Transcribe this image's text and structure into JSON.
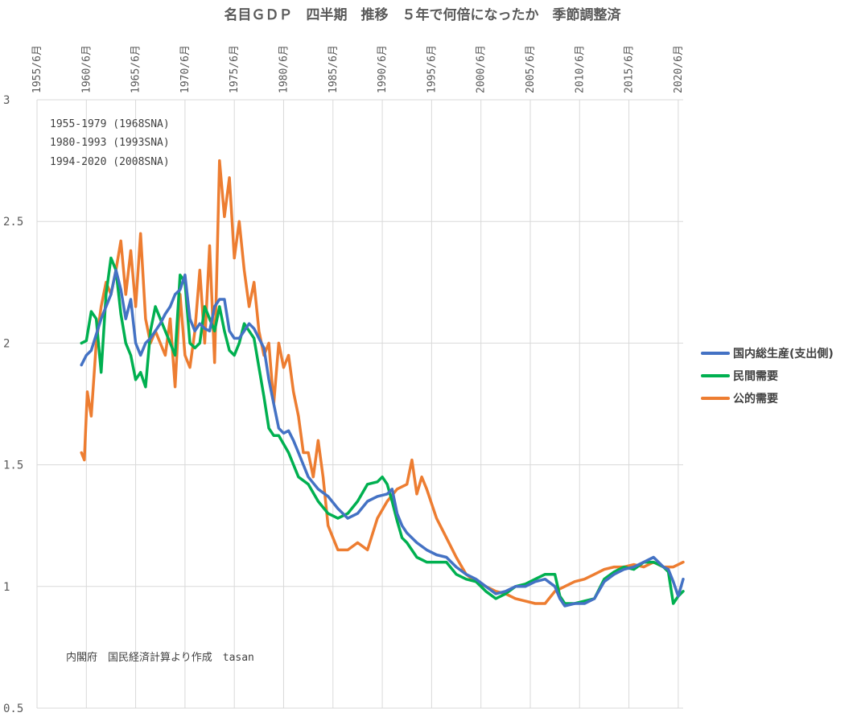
{
  "chart_data": {
    "type": "line",
    "title": "名目ＧＤＰ　四半期　推移　５年で何倍になったか　季節調整済",
    "x_ticks": [
      "1955/6月",
      "1960/6月",
      "1965/6月",
      "1970/6月",
      "1975/6月",
      "1980/6月",
      "1985/6月",
      "1990/6月",
      "1995/6月",
      "2000/6月",
      "2005/6月",
      "2010/6月",
      "2015/6月",
      "2020/6月"
    ],
    "y_ticks": [
      "0.5",
      "1",
      "1.5",
      "2",
      "2.5",
      "3"
    ],
    "ylim": [
      0.5,
      3
    ],
    "xlim": [
      1955.5,
      2021.0
    ],
    "grid": true,
    "legend_position": "right",
    "annotations": [
      "1955-1979 (1968SNA)",
      "1980-1993 (1993SNA)",
      "1994-2020 (2008SNA)"
    ],
    "source_note": "内閣府　国民経済計算より作成　tasan",
    "series": [
      {
        "name": "国内総生産(支出側)",
        "color": "#4472c4",
        "x": [
          1960.0,
          1960.5,
          1961.0,
          1962.0,
          1963.0,
          1963.5,
          1964.0,
          1964.5,
          1965.0,
          1965.5,
          1966.0,
          1966.5,
          1967.0,
          1968.0,
          1968.5,
          1969.0,
          1969.5,
          1970.0,
          1970.5,
          1971.0,
          1971.5,
          1972.0,
          1972.5,
          1973.0,
          1973.5,
          1974.0,
          1974.5,
          1975.0,
          1975.5,
          1976.0,
          1976.5,
          1977.0,
          1977.5,
          1978.0,
          1978.5,
          1979.0,
          1979.5,
          1980.0,
          1980.5,
          1981.0,
          1981.5,
          1982.0,
          1982.5,
          1983.0,
          1984.0,
          1985.0,
          1986.0,
          1987.0,
          1988.0,
          1989.0,
          1990.0,
          1991.0,
          1991.5,
          1992.0,
          1992.5,
          1993.0,
          1994.0,
          1995.0,
          1996.0,
          1997.0,
          1998.0,
          1999.0,
          2000.0,
          2001.0,
          2002.0,
          2003.0,
          2004.0,
          2005.0,
          2006.0,
          2007.0,
          2008.0,
          2008.5,
          2009.0,
          2010.0,
          2011.0,
          2012.0,
          2013.0,
          2014.0,
          2015.0,
          2016.0,
          2017.0,
          2018.0,
          2019.0,
          2019.5,
          2020.0,
          2020.5,
          2021.0
        ],
        "values": [
          1.91,
          1.95,
          1.97,
          2.1,
          2.2,
          2.3,
          2.22,
          2.1,
          2.18,
          2.0,
          1.95,
          2.0,
          2.02,
          2.08,
          2.12,
          2.15,
          2.2,
          2.22,
          2.28,
          2.1,
          2.05,
          2.08,
          2.06,
          2.05,
          2.15,
          2.18,
          2.18,
          2.05,
          2.02,
          2.02,
          2.05,
          2.08,
          2.06,
          2.02,
          1.98,
          1.85,
          1.75,
          1.65,
          1.63,
          1.64,
          1.6,
          1.55,
          1.5,
          1.45,
          1.4,
          1.37,
          1.32,
          1.28,
          1.3,
          1.35,
          1.37,
          1.38,
          1.4,
          1.3,
          1.25,
          1.22,
          1.18,
          1.15,
          1.13,
          1.12,
          1.08,
          1.05,
          1.03,
          1.0,
          0.97,
          0.98,
          1.0,
          1.0,
          1.02,
          1.03,
          1.0,
          0.95,
          0.92,
          0.93,
          0.93,
          0.95,
          1.02,
          1.05,
          1.07,
          1.08,
          1.1,
          1.12,
          1.08,
          1.07,
          1.02,
          0.96,
          1.03
        ]
      },
      {
        "name": "民間需要",
        "color": "#00b050",
        "x": [
          1960.0,
          1960.5,
          1961.0,
          1961.5,
          1962.0,
          1962.5,
          1963.0,
          1963.5,
          1964.0,
          1964.5,
          1965.0,
          1965.5,
          1966.0,
          1966.5,
          1967.0,
          1967.5,
          1968.0,
          1968.5,
          1969.0,
          1969.5,
          1970.0,
          1970.5,
          1971.0,
          1971.5,
          1972.0,
          1972.5,
          1973.0,
          1973.5,
          1974.0,
          1974.5,
          1975.0,
          1975.5,
          1976.0,
          1976.5,
          1977.0,
          1977.5,
          1978.0,
          1978.5,
          1979.0,
          1979.5,
          1980.0,
          1981.0,
          1982.0,
          1983.0,
          1984.0,
          1985.0,
          1986.0,
          1987.0,
          1988.0,
          1989.0,
          1990.0,
          1990.5,
          1991.0,
          1991.5,
          1992.0,
          1992.5,
          1993.0,
          1994.0,
          1995.0,
          1996.0,
          1997.0,
          1998.0,
          1999.0,
          2000.0,
          2001.0,
          2002.0,
          2003.0,
          2004.0,
          2005.0,
          2006.0,
          2007.0,
          2008.0,
          2008.5,
          2009.0,
          2010.0,
          2011.0,
          2012.0,
          2013.0,
          2014.0,
          2015.0,
          2016.0,
          2017.0,
          2018.0,
          2019.0,
          2019.5,
          2020.0,
          2020.5,
          2021.0
        ],
        "values": [
          2.0,
          2.01,
          2.13,
          2.1,
          1.88,
          2.2,
          2.35,
          2.3,
          2.12,
          2.0,
          1.95,
          1.85,
          1.88,
          1.82,
          2.05,
          2.15,
          2.1,
          2.05,
          2.0,
          1.95,
          2.28,
          2.25,
          2.0,
          1.98,
          2.0,
          2.15,
          2.1,
          2.05,
          2.15,
          2.05,
          1.97,
          1.95,
          2.0,
          2.08,
          2.05,
          2.02,
          1.9,
          1.78,
          1.65,
          1.62,
          1.62,
          1.55,
          1.45,
          1.42,
          1.35,
          1.3,
          1.28,
          1.3,
          1.35,
          1.42,
          1.43,
          1.45,
          1.42,
          1.35,
          1.27,
          1.2,
          1.18,
          1.12,
          1.1,
          1.1,
          1.1,
          1.05,
          1.03,
          1.02,
          0.98,
          0.95,
          0.97,
          1.0,
          1.01,
          1.03,
          1.05,
          1.05,
          0.96,
          0.93,
          0.93,
          0.94,
          0.95,
          1.03,
          1.06,
          1.08,
          1.07,
          1.1,
          1.1,
          1.08,
          1.06,
          0.93,
          0.96,
          0.98
        ]
      },
      {
        "name": "公的需要",
        "color": "#ed7d31",
        "x": [
          1960.0,
          1960.3,
          1960.6,
          1961.0,
          1961.5,
          1962.0,
          1962.5,
          1963.0,
          1963.5,
          1964.0,
          1964.5,
          1965.0,
          1965.5,
          1966.0,
          1966.5,
          1967.0,
          1967.5,
          1968.0,
          1968.5,
          1969.0,
          1969.5,
          1970.0,
          1970.5,
          1971.0,
          1971.5,
          1972.0,
          1972.5,
          1973.0,
          1973.5,
          1974.0,
          1974.5,
          1975.0,
          1975.5,
          1976.0,
          1976.5,
          1977.0,
          1977.5,
          1978.0,
          1978.5,
          1979.0,
          1979.5,
          1980.0,
          1980.5,
          1981.0,
          1981.5,
          1982.0,
          1982.5,
          1983.0,
          1983.5,
          1984.0,
          1984.5,
          1985.0,
          1986.0,
          1987.0,
          1988.0,
          1989.0,
          1990.0,
          1991.0,
          1992.0,
          1993.0,
          1993.5,
          1994.0,
          1994.5,
          1995.0,
          1996.0,
          1997.0,
          1998.0,
          1999.0,
          2000.0,
          2001.0,
          2002.0,
          2003.0,
          2004.0,
          2005.0,
          2006.0,
          2007.0,
          2008.0,
          2009.0,
          2010.0,
          2011.0,
          2012.0,
          2013.0,
          2014.0,
          2015.0,
          2016.0,
          2017.0,
          2018.0,
          2019.0,
          2020.0,
          2020.5,
          2021.0
        ],
        "values": [
          1.55,
          1.52,
          1.8,
          1.7,
          2.0,
          2.15,
          2.25,
          2.2,
          2.3,
          2.42,
          2.2,
          2.38,
          2.15,
          2.45,
          2.1,
          2.0,
          2.05,
          2.0,
          1.95,
          2.1,
          1.82,
          2.2,
          1.95,
          1.9,
          2.05,
          2.3,
          2.0,
          2.4,
          1.92,
          2.75,
          2.52,
          2.68,
          2.35,
          2.5,
          2.3,
          2.15,
          2.25,
          2.05,
          1.95,
          2.0,
          1.75,
          2.0,
          1.9,
          1.95,
          1.8,
          1.7,
          1.55,
          1.55,
          1.45,
          1.6,
          1.45,
          1.25,
          1.15,
          1.15,
          1.18,
          1.15,
          1.28,
          1.35,
          1.4,
          1.42,
          1.52,
          1.38,
          1.45,
          1.4,
          1.28,
          1.2,
          1.12,
          1.05,
          1.02,
          1.0,
          0.98,
          0.97,
          0.95,
          0.94,
          0.93,
          0.93,
          0.98,
          1.0,
          1.02,
          1.03,
          1.05,
          1.07,
          1.08,
          1.08,
          1.09,
          1.08,
          1.1,
          1.08,
          1.08,
          1.09,
          1.1
        ]
      }
    ]
  }
}
